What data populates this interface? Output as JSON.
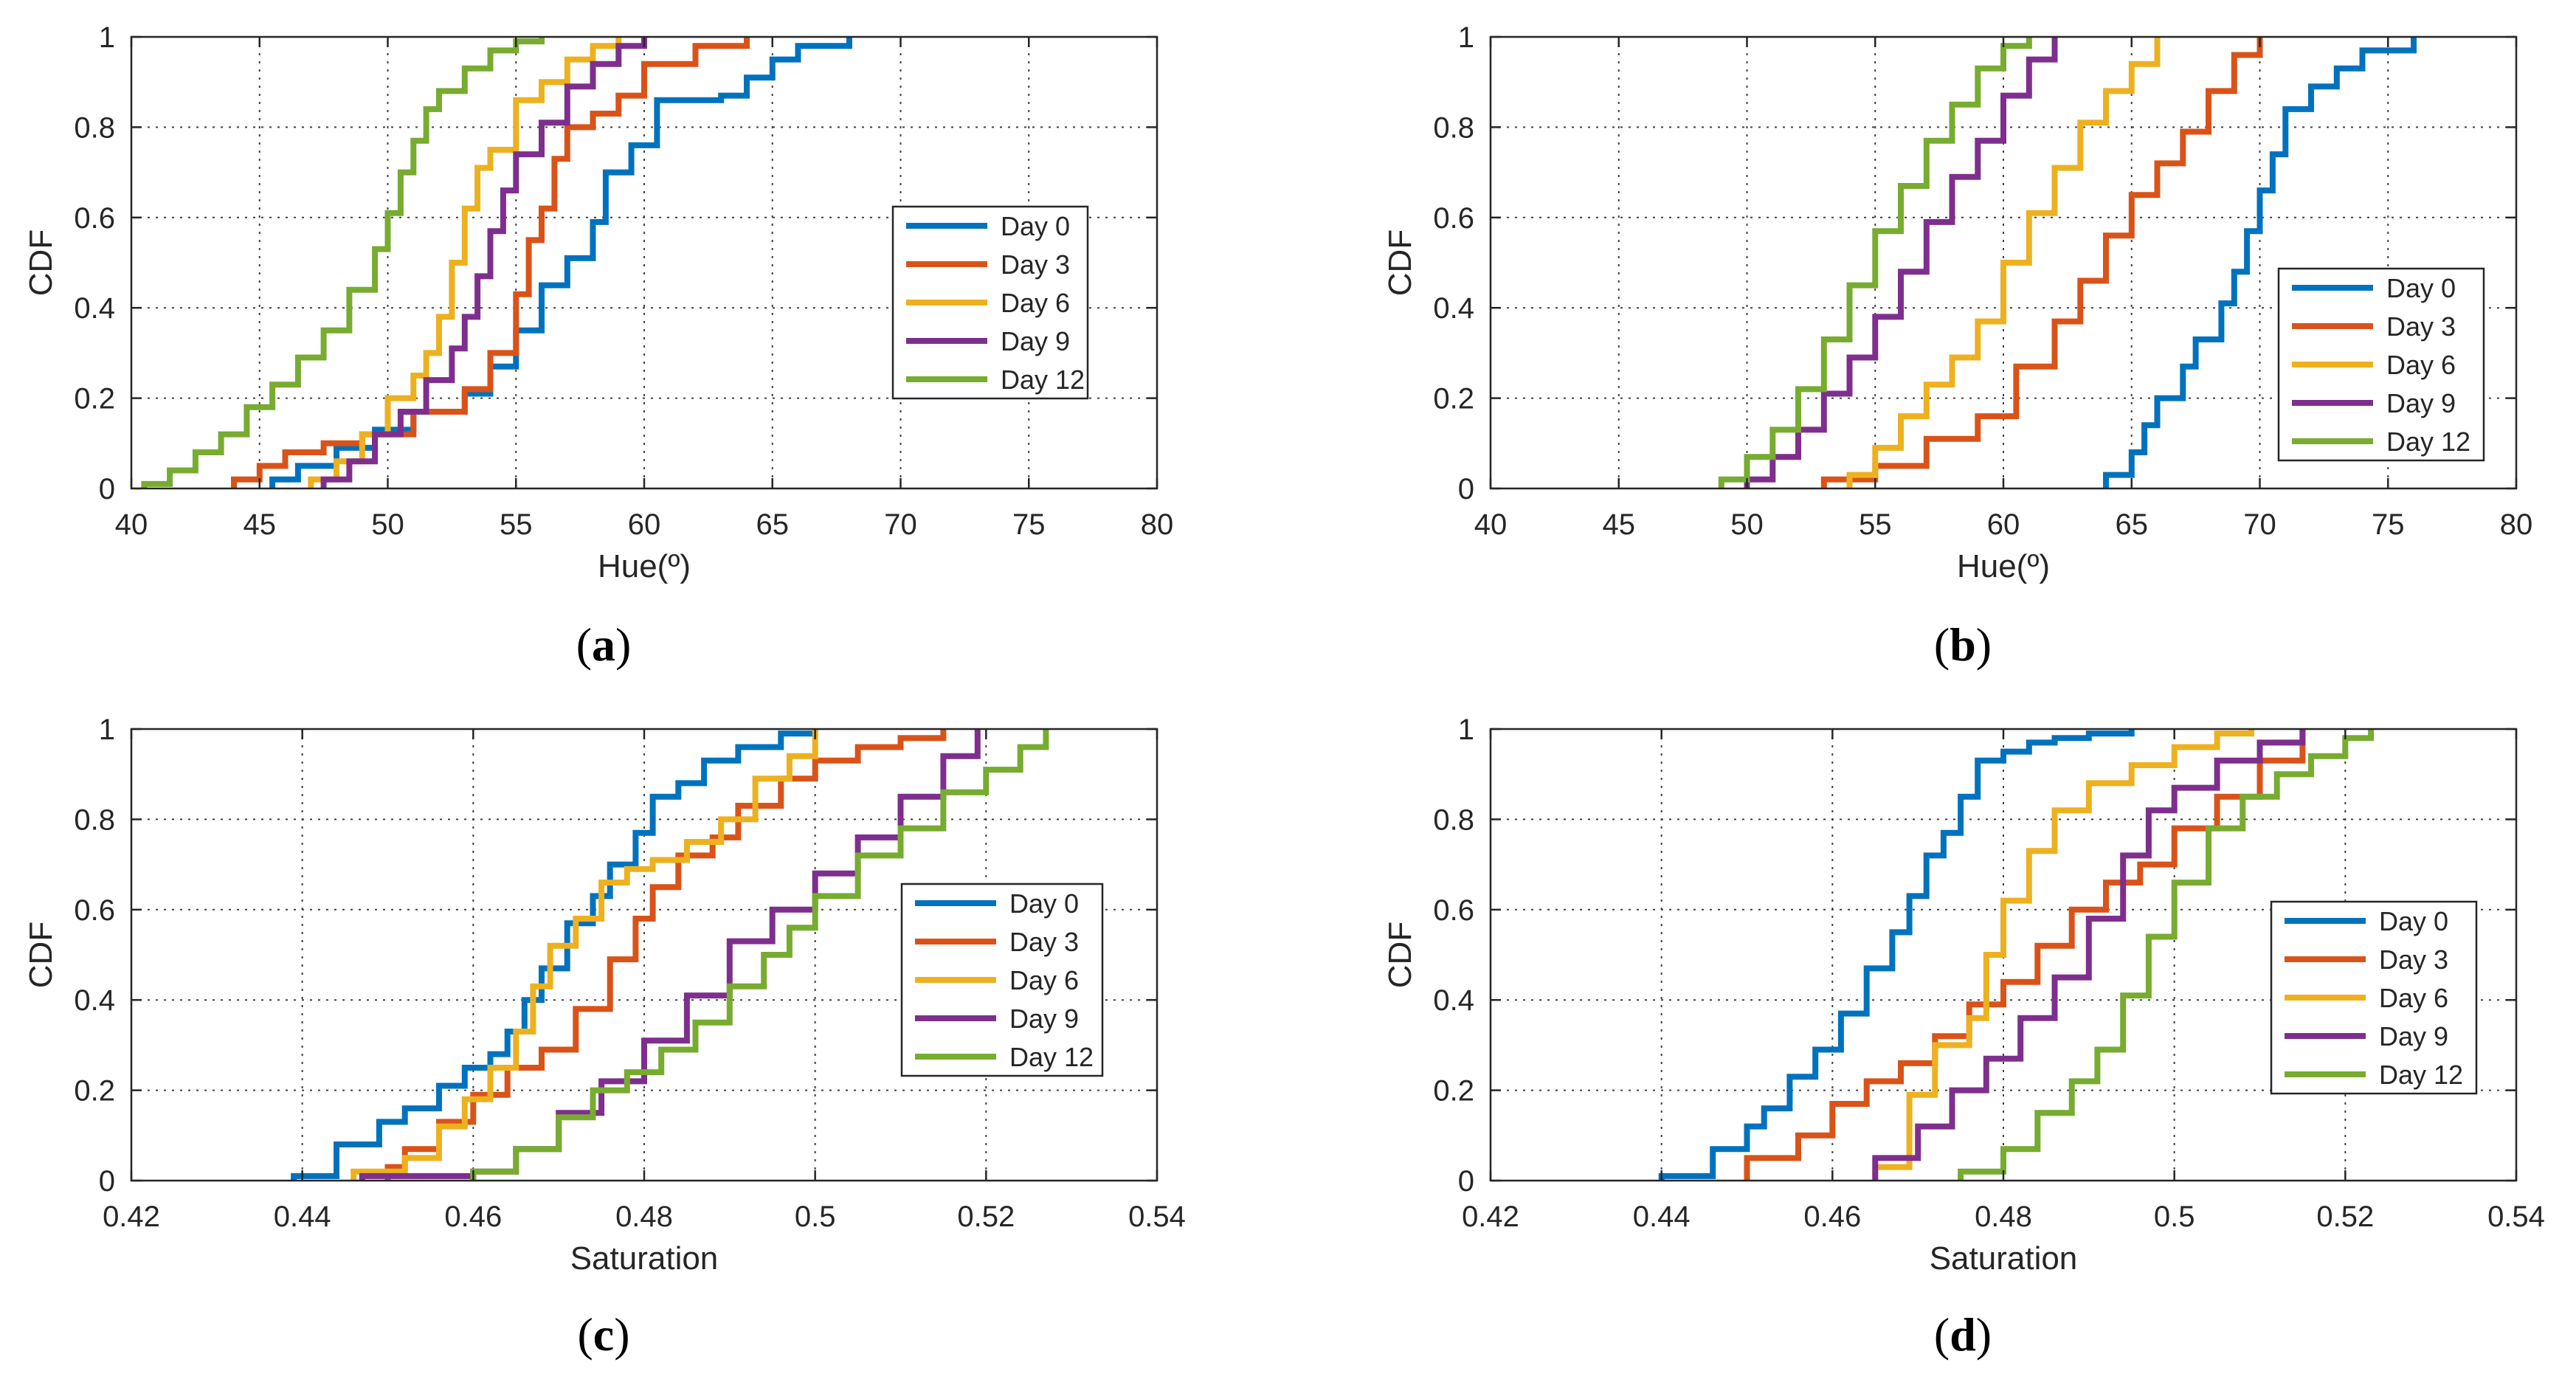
{
  "figure": {
    "series_colors": {
      "Day 0": "#0072BD",
      "Day 3": "#D95319",
      "Day 6": "#EDB120",
      "Day 9": "#7E2F8E",
      "Day 12": "#77AC30"
    },
    "axis_color": "#262626",
    "grid_color": "#404040"
  },
  "chart_data": [
    {
      "id": "a",
      "caption": "(a)",
      "caption_letter": "a",
      "type": "line",
      "subtype": "empirical-cdf-step",
      "title": "",
      "xlabel": "Hue(º)",
      "ylabel": "CDF",
      "xlim": [
        40,
        80
      ],
      "ylim": [
        0,
        1
      ],
      "xticks": [
        40,
        45,
        50,
        55,
        60,
        65,
        70,
        75,
        80
      ],
      "xtick_labels": [
        "40",
        "45",
        "50",
        "55",
        "60",
        "65",
        "70",
        "75",
        "80"
      ],
      "yticks": [
        0,
        0.2,
        0.4,
        0.6,
        0.8,
        1
      ],
      "ytick_labels": [
        "0",
        "0.2",
        "0.4",
        "0.6",
        "0.8",
        "1"
      ],
      "grid": true,
      "legend_position": "middle-right",
      "series": [
        {
          "name": "Day 0",
          "x": [
            45.5,
            46.5,
            48,
            49.5,
            51,
            53,
            54,
            55,
            56,
            57,
            58,
            58.5,
            59.5,
            60.5,
            63,
            64,
            65,
            66,
            68
          ],
          "y": [
            0.02,
            0.05,
            0.09,
            0.13,
            0.17,
            0.21,
            0.27,
            0.35,
            0.45,
            0.51,
            0.59,
            0.7,
            0.76,
            0.86,
            0.87,
            0.91,
            0.95,
            0.98,
            1
          ]
        },
        {
          "name": "Day 3",
          "x": [
            44,
            45,
            46,
            47.5,
            49,
            51,
            53,
            54,
            55,
            55.5,
            56,
            56.5,
            57,
            58,
            59,
            60,
            62,
            64
          ],
          "y": [
            0.02,
            0.05,
            0.08,
            0.1,
            0.12,
            0.17,
            0.22,
            0.3,
            0.43,
            0.55,
            0.62,
            0.73,
            0.8,
            0.83,
            0.87,
            0.94,
            0.98,
            1
          ]
        },
        {
          "name": "Day 6",
          "x": [
            47,
            48,
            49,
            50,
            51,
            51.5,
            52,
            52.5,
            53,
            53.5,
            54,
            55,
            56,
            57,
            58,
            59
          ],
          "y": [
            0.02,
            0.06,
            0.12,
            0.2,
            0.25,
            0.3,
            0.38,
            0.5,
            0.62,
            0.71,
            0.75,
            0.86,
            0.9,
            0.95,
            0.98,
            1
          ]
        },
        {
          "name": "Day 9",
          "x": [
            47.5,
            48.5,
            49.5,
            50.5,
            51.5,
            52.5,
            53,
            53.5,
            54,
            54.5,
            55,
            56,
            57,
            58,
            59,
            60
          ],
          "y": [
            0.02,
            0.06,
            0.12,
            0.17,
            0.24,
            0.31,
            0.38,
            0.47,
            0.57,
            0.66,
            0.74,
            0.81,
            0.89,
            0.94,
            0.98,
            1
          ]
        },
        {
          "name": "Day 12",
          "x": [
            40.5,
            41.5,
            42.5,
            43.5,
            44.5,
            45.5,
            46.5,
            47.5,
            48.5,
            49.5,
            50,
            50.5,
            51,
            51.5,
            52,
            53,
            54,
            55,
            56
          ],
          "y": [
            0.01,
            0.04,
            0.08,
            0.12,
            0.18,
            0.23,
            0.29,
            0.35,
            0.44,
            0.53,
            0.61,
            0.7,
            0.77,
            0.84,
            0.88,
            0.93,
            0.97,
            0.99,
            1
          ]
        }
      ]
    },
    {
      "id": "b",
      "caption": "(b)",
      "caption_letter": "b",
      "type": "line",
      "subtype": "empirical-cdf-step",
      "title": "",
      "xlabel": "Hue(º)",
      "ylabel": "CDF",
      "xlim": [
        40,
        80
      ],
      "ylim": [
        0,
        1
      ],
      "xticks": [
        40,
        45,
        50,
        55,
        60,
        65,
        70,
        75,
        80
      ],
      "xtick_labels": [
        "40",
        "45",
        "50",
        "55",
        "60",
        "65",
        "70",
        "75",
        "80"
      ],
      "yticks": [
        0,
        0.2,
        0.4,
        0.6,
        0.8,
        1
      ],
      "ytick_labels": [
        "0",
        "0.2",
        "0.4",
        "0.6",
        "0.8",
        "1"
      ],
      "grid": true,
      "legend_position": "middle-right",
      "series": [
        {
          "name": "Day 0",
          "x": [
            64,
            65,
            65.5,
            66,
            67,
            67.5,
            68.5,
            69,
            69.5,
            70,
            70.5,
            71,
            72,
            73,
            74,
            76
          ],
          "y": [
            0.03,
            0.08,
            0.14,
            0.2,
            0.27,
            0.33,
            0.41,
            0.48,
            0.57,
            0.66,
            0.74,
            0.84,
            0.89,
            0.93,
            0.97,
            1
          ]
        },
        {
          "name": "Day 3",
          "x": [
            53,
            55,
            57,
            59,
            60.5,
            62,
            63,
            64,
            65,
            66,
            67,
            68,
            69,
            70
          ],
          "y": [
            0.02,
            0.05,
            0.11,
            0.16,
            0.27,
            0.37,
            0.46,
            0.56,
            0.65,
            0.72,
            0.79,
            0.88,
            0.96,
            1
          ]
        },
        {
          "name": "Day 6",
          "x": [
            54,
            55,
            56,
            57,
            58,
            59,
            60,
            61,
            62,
            63,
            64,
            65,
            66
          ],
          "y": [
            0.03,
            0.09,
            0.16,
            0.23,
            0.29,
            0.37,
            0.5,
            0.61,
            0.71,
            0.81,
            0.88,
            0.94,
            1
          ]
        },
        {
          "name": "Day 9",
          "x": [
            50,
            51,
            52,
            53,
            54,
            55,
            56,
            57,
            58,
            59,
            60,
            61,
            62
          ],
          "y": [
            0.02,
            0.07,
            0.13,
            0.21,
            0.29,
            0.38,
            0.48,
            0.59,
            0.69,
            0.77,
            0.87,
            0.95,
            1
          ]
        },
        {
          "name": "Day 12",
          "x": [
            49,
            50,
            51,
            52,
            53,
            54,
            55,
            56,
            57,
            58,
            59,
            60,
            61
          ],
          "y": [
            0.02,
            0.07,
            0.13,
            0.22,
            0.33,
            0.45,
            0.57,
            0.67,
            0.77,
            0.85,
            0.93,
            0.98,
            1
          ]
        }
      ]
    },
    {
      "id": "c",
      "caption": "(c)",
      "caption_letter": "c",
      "type": "line",
      "subtype": "empirical-cdf-step",
      "title": "",
      "xlabel": "Saturation",
      "ylabel": "CDF",
      "xlim": [
        0.42,
        0.54
      ],
      "ylim": [
        0,
        1
      ],
      "xticks": [
        0.42,
        0.44,
        0.46,
        0.48,
        0.5,
        0.52,
        0.54
      ],
      "xtick_labels": [
        "0.42",
        "0.44",
        "0.46",
        "0.48",
        "0.5",
        "0.52",
        "0.54"
      ],
      "yticks": [
        0,
        0.2,
        0.4,
        0.6,
        0.8,
        1
      ],
      "ytick_labels": [
        "0",
        "0.2",
        "0.4",
        "0.6",
        "0.8",
        "1"
      ],
      "grid": true,
      "legend_position": "middle-right",
      "series": [
        {
          "name": "Day 0",
          "x": [
            0.439,
            0.444,
            0.449,
            0.452,
            0.456,
            0.459,
            0.462,
            0.464,
            0.466,
            0.468,
            0.471,
            0.474,
            0.476,
            0.479,
            0.481,
            0.484,
            0.487,
            0.491,
            0.496,
            0.5
          ],
          "y": [
            0.01,
            0.08,
            0.13,
            0.16,
            0.21,
            0.25,
            0.28,
            0.33,
            0.4,
            0.47,
            0.57,
            0.63,
            0.7,
            0.77,
            0.85,
            0.88,
            0.93,
            0.96,
            0.99,
            1
          ]
        },
        {
          "name": "Day 3",
          "x": [
            0.45,
            0.452,
            0.456,
            0.46,
            0.464,
            0.468,
            0.472,
            0.476,
            0.479,
            0.481,
            0.484,
            0.488,
            0.491,
            0.496,
            0.5,
            0.505,
            0.51,
            0.515
          ],
          "y": [
            0.03,
            0.07,
            0.13,
            0.19,
            0.25,
            0.29,
            0.38,
            0.49,
            0.58,
            0.65,
            0.72,
            0.76,
            0.83,
            0.89,
            0.93,
            0.96,
            0.98,
            1
          ]
        },
        {
          "name": "Day 6",
          "x": [
            0.446,
            0.452,
            0.456,
            0.459,
            0.462,
            0.465,
            0.467,
            0.469,
            0.472,
            0.475,
            0.478,
            0.481,
            0.485,
            0.489,
            0.493,
            0.497,
            0.5
          ],
          "y": [
            0.02,
            0.05,
            0.12,
            0.18,
            0.25,
            0.33,
            0.43,
            0.52,
            0.58,
            0.66,
            0.69,
            0.71,
            0.75,
            0.8,
            0.89,
            0.94,
            1
          ]
        },
        {
          "name": "Day 9",
          "x": [
            0.447,
            0.46,
            0.465,
            0.47,
            0.475,
            0.48,
            0.485,
            0.49,
            0.495,
            0.5,
            0.505,
            0.51,
            0.515,
            0.519
          ],
          "y": [
            0.01,
            0.02,
            0.07,
            0.15,
            0.22,
            0.31,
            0.41,
            0.53,
            0.6,
            0.68,
            0.76,
            0.85,
            0.94,
            1
          ]
        },
        {
          "name": "Day 12",
          "x": [
            0.46,
            0.465,
            0.47,
            0.474,
            0.478,
            0.482,
            0.486,
            0.49,
            0.494,
            0.497,
            0.5,
            0.505,
            0.51,
            0.515,
            0.52,
            0.524,
            0.527
          ],
          "y": [
            0.02,
            0.07,
            0.14,
            0.2,
            0.24,
            0.29,
            0.35,
            0.43,
            0.5,
            0.56,
            0.63,
            0.72,
            0.78,
            0.86,
            0.91,
            0.96,
            1
          ]
        }
      ]
    },
    {
      "id": "d",
      "caption": "(d)",
      "caption_letter": "d",
      "type": "line",
      "subtype": "empirical-cdf-step",
      "title": "",
      "xlabel": "Saturation",
      "ylabel": "CDF",
      "xlim": [
        0.42,
        0.54
      ],
      "ylim": [
        0,
        1
      ],
      "xticks": [
        0.42,
        0.44,
        0.46,
        0.48,
        0.5,
        0.52,
        0.54
      ],
      "xtick_labels": [
        "0.42",
        "0.44",
        "0.46",
        "0.48",
        "0.5",
        "0.52",
        "0.54"
      ],
      "yticks": [
        0,
        0.2,
        0.4,
        0.6,
        0.8,
        1
      ],
      "ytick_labels": [
        "0",
        "0.2",
        "0.4",
        "0.6",
        "0.8",
        "1"
      ],
      "grid": true,
      "legend_position": "middle-right",
      "series": [
        {
          "name": "Day 0",
          "x": [
            0.44,
            0.446,
            0.45,
            0.452,
            0.455,
            0.458,
            0.461,
            0.464,
            0.467,
            0.469,
            0.471,
            0.473,
            0.475,
            0.477,
            0.48,
            0.483,
            0.486,
            0.49,
            0.495
          ],
          "y": [
            0.01,
            0.07,
            0.12,
            0.16,
            0.23,
            0.29,
            0.37,
            0.47,
            0.55,
            0.63,
            0.72,
            0.77,
            0.85,
            0.93,
            0.95,
            0.97,
            0.98,
            0.99,
            1
          ]
        },
        {
          "name": "Day 3",
          "x": [
            0.45,
            0.456,
            0.46,
            0.464,
            0.468,
            0.472,
            0.476,
            0.48,
            0.484,
            0.488,
            0.492,
            0.496,
            0.5,
            0.505,
            0.51,
            0.515
          ],
          "y": [
            0.05,
            0.1,
            0.17,
            0.22,
            0.26,
            0.32,
            0.39,
            0.44,
            0.52,
            0.6,
            0.66,
            0.7,
            0.78,
            0.85,
            0.93,
            1
          ]
        },
        {
          "name": "Day 6",
          "x": [
            0.465,
            0.469,
            0.472,
            0.476,
            0.478,
            0.48,
            0.483,
            0.486,
            0.49,
            0.495,
            0.5,
            0.505,
            0.509
          ],
          "y": [
            0.03,
            0.19,
            0.3,
            0.36,
            0.5,
            0.62,
            0.73,
            0.82,
            0.88,
            0.92,
            0.96,
            0.99,
            1
          ]
        },
        {
          "name": "Day 9",
          "x": [
            0.465,
            0.47,
            0.474,
            0.478,
            0.482,
            0.486,
            0.49,
            0.494,
            0.497,
            0.5,
            0.505,
            0.51,
            0.515
          ],
          "y": [
            0.05,
            0.12,
            0.2,
            0.27,
            0.36,
            0.45,
            0.58,
            0.72,
            0.82,
            0.87,
            0.93,
            0.97,
            1
          ]
        },
        {
          "name": "Day 12",
          "x": [
            0.475,
            0.48,
            0.484,
            0.488,
            0.491,
            0.494,
            0.497,
            0.5,
            0.504,
            0.508,
            0.512,
            0.516,
            0.52,
            0.523
          ],
          "y": [
            0.02,
            0.07,
            0.15,
            0.22,
            0.29,
            0.41,
            0.54,
            0.66,
            0.78,
            0.85,
            0.9,
            0.94,
            0.98,
            1
          ]
        }
      ]
    }
  ]
}
